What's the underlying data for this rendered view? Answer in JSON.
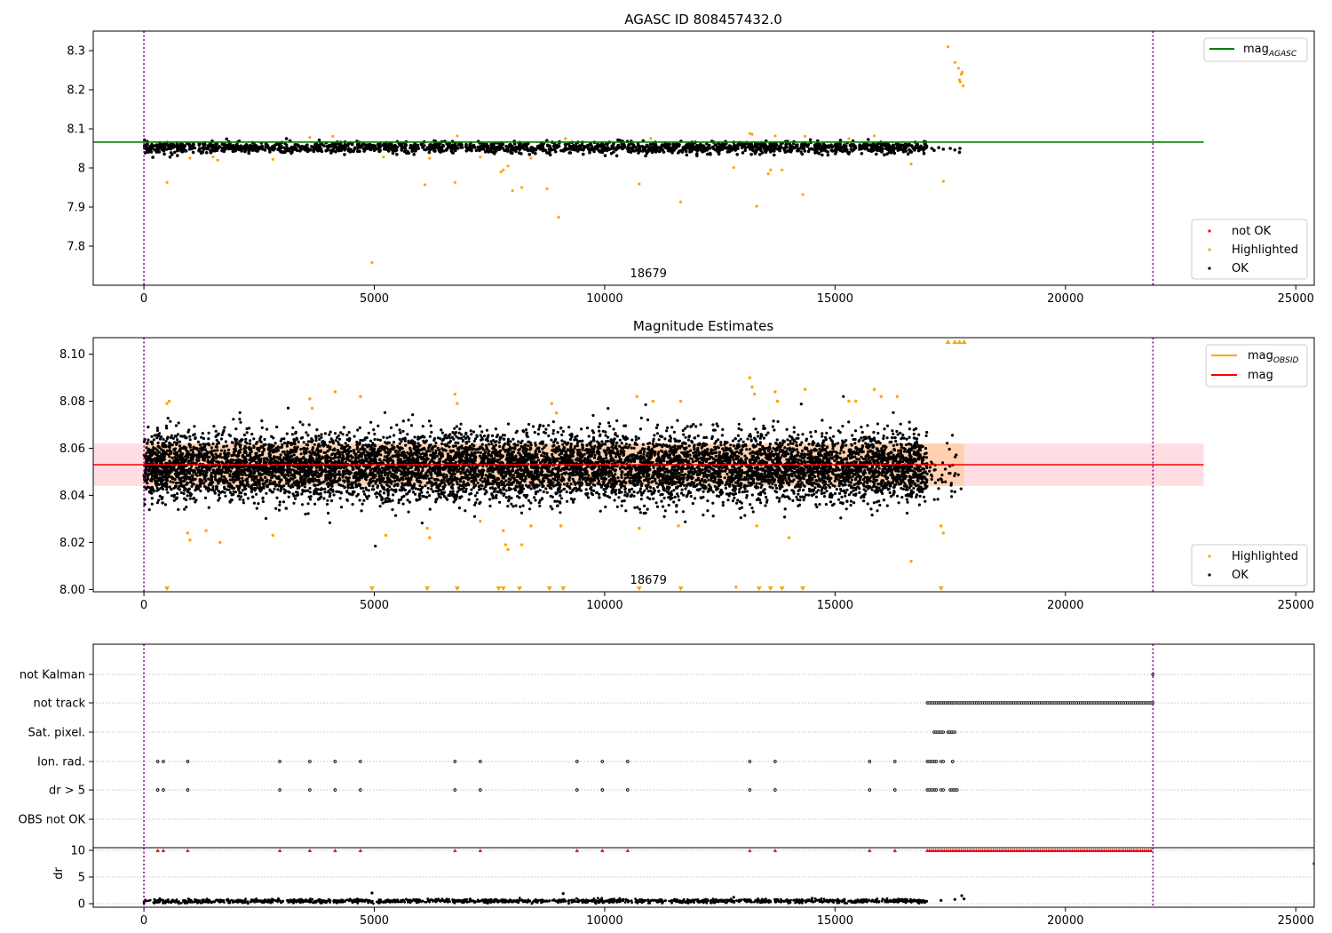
{
  "chart_data": [
    {
      "type": "scatter",
      "title": "AGASC ID 808457432.0",
      "xlim": [
        -1100,
        25400
      ],
      "ylim": [
        7.7,
        8.35
      ],
      "xticks": [
        0,
        5000,
        10000,
        15000,
        20000,
        25000
      ],
      "yticks": [
        7.8,
        7.9,
        8.0,
        8.1,
        8.2,
        8.3
      ],
      "vlines": [
        0,
        21900
      ],
      "obsid_label": {
        "text": "18679",
        "x": 10950
      },
      "mag_agasc": {
        "value": 8.066,
        "x_range": [
          -1100,
          23000
        ],
        "color": "#008000"
      },
      "legend_top": [
        {
          "label": "mag",
          "sub": "AGASC",
          "color": "#008000"
        }
      ],
      "legend_bottom": [
        {
          "label": "not OK",
          "color": "#ff0000"
        },
        {
          "label": "Highlighted",
          "color": "#ffa500"
        },
        {
          "label": "OK",
          "color": "#000000"
        }
      ],
      "ok_band": {
        "x_range": [
          0,
          17000
        ],
        "center": 8.052,
        "spread": 0.016,
        "count": 1800
      },
      "ok_tail": [
        [
          17100,
          8.05
        ],
        [
          17150,
          8.045
        ],
        [
          17250,
          8.052
        ],
        [
          17350,
          8.048
        ],
        [
          17500,
          8.05
        ],
        [
          17600,
          8.046
        ],
        [
          17700,
          8.04
        ],
        [
          17710,
          8.05
        ]
      ],
      "highlighted": [
        [
          500,
          7.963
        ],
        [
          1000,
          8.025
        ],
        [
          1500,
          8.028
        ],
        [
          1600,
          8.02
        ],
        [
          2800,
          8.022
        ],
        [
          3600,
          8.078
        ],
        [
          4100,
          8.081
        ],
        [
          4950,
          7.758
        ],
        [
          5200,
          8.028
        ],
        [
          6100,
          7.957
        ],
        [
          6200,
          8.025
        ],
        [
          6750,
          7.963
        ],
        [
          6800,
          8.082
        ],
        [
          7300,
          8.028
        ],
        [
          7750,
          7.99
        ],
        [
          7800,
          7.995
        ],
        [
          7900,
          8.005
        ],
        [
          8000,
          7.942
        ],
        [
          8200,
          7.95
        ],
        [
          8400,
          8.025
        ],
        [
          8750,
          7.947
        ],
        [
          9000,
          7.874
        ],
        [
          9150,
          8.075
        ],
        [
          10750,
          7.959
        ],
        [
          11000,
          8.075
        ],
        [
          11650,
          7.913
        ],
        [
          12800,
          8.001
        ],
        [
          13150,
          8.088
        ],
        [
          13200,
          8.086
        ],
        [
          13300,
          7.902
        ],
        [
          13550,
          7.985
        ],
        [
          13600,
          7.995
        ],
        [
          13700,
          8.082
        ],
        [
          13850,
          7.995
        ],
        [
          14300,
          7.932
        ],
        [
          14350,
          8.081
        ],
        [
          15300,
          8.075
        ],
        [
          15850,
          8.082
        ],
        [
          16650,
          8.01
        ],
        [
          17350,
          7.966
        ],
        [
          17450,
          8.31
        ],
        [
          17600,
          8.27
        ],
        [
          17680,
          8.255
        ],
        [
          17700,
          8.225
        ],
        [
          17720,
          8.22
        ],
        [
          17740,
          8.24
        ],
        [
          17760,
          8.245
        ],
        [
          17780,
          8.21
        ]
      ]
    },
    {
      "type": "scatter",
      "title": "Magnitude Estimates",
      "xlim": [
        -1100,
        25400
      ],
      "ylim": [
        7.999,
        8.107
      ],
      "xticks": [
        0,
        5000,
        10000,
        15000,
        20000,
        25000
      ],
      "yticks": [
        "8.00",
        "8.02",
        "8.04",
        "8.06",
        "8.08",
        "8.10"
      ],
      "vlines": [
        0,
        21900
      ],
      "obsid_label": {
        "text": "18679",
        "x": 10950
      },
      "mag": {
        "value": 8.053,
        "color": "#ff0000",
        "band": [
          8.044,
          8.062
        ],
        "x_range": [
          -1100,
          23000
        ]
      },
      "mag_obsid": {
        "color": "#ffa500",
        "x_range": [
          0,
          17800
        ]
      },
      "legend_top": [
        {
          "label": "mag",
          "sub": "OBSID",
          "color": "#ffa500"
        },
        {
          "label": "mag",
          "sub": "",
          "color": "#ff0000"
        }
      ],
      "legend_bottom": [
        {
          "label": "Highlighted",
          "color": "#ffa500"
        },
        {
          "label": "OK",
          "color": "#000000"
        }
      ],
      "ok_band": {
        "x_range": [
          0,
          17000
        ],
        "center": 8.052,
        "spread": 0.007,
        "count": 9000
      },
      "highlighted": [
        [
          500,
          8.079
        ],
        [
          550,
          8.08
        ],
        [
          950,
          8.024
        ],
        [
          1000,
          8.021
        ],
        [
          1350,
          8.025
        ],
        [
          1650,
          8.02
        ],
        [
          2800,
          8.023
        ],
        [
          3600,
          8.081
        ],
        [
          3650,
          8.077
        ],
        [
          4150,
          8.084
        ],
        [
          4700,
          8.082
        ],
        [
          5250,
          8.023
        ],
        [
          6150,
          8.026
        ],
        [
          6200,
          8.022
        ],
        [
          6750,
          8.083
        ],
        [
          6800,
          8.079
        ],
        [
          7300,
          8.029
        ],
        [
          7800,
          8.025
        ],
        [
          7850,
          8.019
        ],
        [
          7900,
          8.017
        ],
        [
          8200,
          8.019
        ],
        [
          8400,
          8.027
        ],
        [
          8850,
          8.079
        ],
        [
          8950,
          8.075
        ],
        [
          9050,
          8.027
        ],
        [
          10700,
          8.082
        ],
        [
          10750,
          8.026
        ],
        [
          11050,
          8.08
        ],
        [
          11600,
          8.027
        ],
        [
          11650,
          8.08
        ],
        [
          12850,
          8.001
        ],
        [
          13150,
          8.09
        ],
        [
          13200,
          8.086
        ],
        [
          13250,
          8.083
        ],
        [
          13300,
          8.027
        ],
        [
          13700,
          8.084
        ],
        [
          13750,
          8.08
        ],
        [
          14000,
          8.022
        ],
        [
          14350,
          8.085
        ],
        [
          15300,
          8.08
        ],
        [
          15450,
          8.08
        ],
        [
          15850,
          8.085
        ],
        [
          16000,
          8.082
        ],
        [
          16350,
          8.082
        ],
        [
          16650,
          8.012
        ],
        [
          17300,
          8.027
        ],
        [
          17350,
          8.024
        ]
      ],
      "low_markers": [
        500,
        4950,
        6150,
        6800,
        7700,
        7800,
        8150,
        8800,
        9100,
        10750,
        11650,
        13350,
        13600,
        13850,
        14300,
        17300
      ],
      "high_markers": [
        17450,
        17600,
        17700,
        17800
      ]
    },
    {
      "type": "scatter",
      "categories": [
        "not Kalman",
        "not track",
        "Sat. pixel.",
        "Ion. rad.",
        "dr > 5",
        "OBS not OK"
      ],
      "xlim": [
        -1100,
        25400
      ],
      "xticks": [
        0,
        5000,
        10000,
        15000,
        20000,
        25000
      ],
      "vlines": [
        0,
        21900
      ],
      "flags": {
        "not Kalman": [
          [
            21900,
            21900
          ]
        ],
        "not track": [
          [
            17000,
            17200
          ],
          [
            17250,
            17400
          ],
          [
            17450,
            17600
          ],
          [
            17650,
            21900
          ]
        ],
        "Sat. pixel.": [
          [
            17150,
            17350
          ],
          [
            17450,
            17600
          ]
        ],
        "Ion. rad.": [
          [
            300,
            300
          ],
          [
            420,
            420
          ],
          [
            950,
            950
          ],
          [
            2950,
            2950
          ],
          [
            3600,
            3600
          ],
          [
            4150,
            4150
          ],
          [
            4700,
            4700
          ],
          [
            6750,
            6750
          ],
          [
            7300,
            7300
          ],
          [
            9400,
            9400
          ],
          [
            9950,
            9950
          ],
          [
            10500,
            10500
          ],
          [
            13150,
            13150
          ],
          [
            13700,
            13700
          ],
          [
            15750,
            15750
          ],
          [
            16300,
            16300
          ],
          [
            17000,
            17200
          ],
          [
            17300,
            17350
          ],
          [
            17550,
            17550
          ]
        ],
        "dr > 5": [
          [
            300,
            300
          ],
          [
            420,
            420
          ],
          [
            950,
            950
          ],
          [
            2950,
            2950
          ],
          [
            3600,
            3600
          ],
          [
            4150,
            4150
          ],
          [
            4700,
            4700
          ],
          [
            6750,
            6750
          ],
          [
            7300,
            7300
          ],
          [
            9400,
            9400
          ],
          [
            9950,
            9950
          ],
          [
            10500,
            10500
          ],
          [
            13150,
            13150
          ],
          [
            13700,
            13700
          ],
          [
            15750,
            15750
          ],
          [
            16300,
            16300
          ],
          [
            17000,
            17200
          ],
          [
            17300,
            17350
          ],
          [
            17500,
            17650
          ]
        ],
        "OBS not OK": []
      },
      "dr": {
        "ylabel": "dr",
        "ylim": [
          -0.5,
          10.5
        ],
        "yticks": [
          0,
          5,
          10
        ],
        "saturated_value": 10,
        "saturated_color": "#ff0000",
        "saturated_points": [
          [
            300
          ],
          [
            420
          ],
          [
            950
          ],
          [
            2950
          ],
          [
            3600
          ],
          [
            4150
          ],
          [
            4700
          ],
          [
            6750
          ],
          [
            7300
          ],
          [
            9400
          ],
          [
            9950
          ],
          [
            10500
          ],
          [
            13150
          ],
          [
            13700
          ],
          [
            15750
          ],
          [
            16300
          ]
        ],
        "saturated_range": [
          17000,
          21900
        ],
        "ok_x_range": [
          0,
          17000
        ],
        "ok_level": 0.5,
        "ok_spread": 0.35,
        "ok_count": 1500,
        "extra_points": [
          [
            4950,
            2.0
          ],
          [
            9100,
            1.9
          ],
          [
            12800,
            1.2
          ],
          [
            14500,
            1.0
          ],
          [
            17300,
            0.6
          ],
          [
            17600,
            0.8
          ],
          [
            17750,
            1.5
          ],
          [
            17800,
            0.9
          ],
          [
            25400,
            7.5
          ]
        ]
      }
    }
  ]
}
